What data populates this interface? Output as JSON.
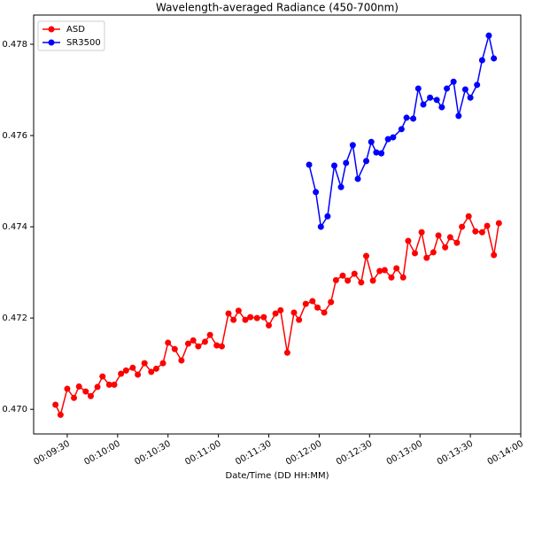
{
  "chart_data": {
    "type": "line",
    "title": "Wavelength-averaged Radiance (450-700nm)",
    "xlabel": "Date/Time (DD HH:MM)",
    "xlim": [
      "00:09:10",
      "00:14:00"
    ],
    "xticks": [
      "00:09:30",
      "00:10:00",
      "00:10:30",
      "00:11:00",
      "00:11:30",
      "00:12:00",
      "00:12:30",
      "00:13:00",
      "00:13:30",
      "00:14:00"
    ],
    "ylim": [
      0.46946,
      0.47864
    ],
    "yticks": [
      {
        "value": 0.47,
        "label": "0.470"
      },
      {
        "value": 0.472,
        "label": "0.472"
      },
      {
        "value": 0.474,
        "label": "0.474"
      },
      {
        "value": 0.476,
        "label": "0.476"
      },
      {
        "value": 0.478,
        "label": "0.478"
      }
    ],
    "legend": "upper left",
    "series": [
      {
        "name": "ASD",
        "color": "#ff0000",
        "x": [
          "00:09:23",
          "00:09:26",
          "00:09:30",
          "00:09:34",
          "00:09:37",
          "00:09:41",
          "00:09:44",
          "00:09:48",
          "00:09:51",
          "00:09:55",
          "00:09:58",
          "00:10:02",
          "00:10:05",
          "00:10:09",
          "00:10:12",
          "00:10:16",
          "00:10:20",
          "00:10:23",
          "00:10:27",
          "00:10:30",
          "00:10:34",
          "00:10:38",
          "00:10:42",
          "00:10:45",
          "00:10:48",
          "00:10:52",
          "00:10:55",
          "00:10:59",
          "00:11:02",
          "00:11:06",
          "00:11:09",
          "00:11:12",
          "00:11:16",
          "00:11:19",
          "00:11:23",
          "00:11:27",
          "00:11:30",
          "00:11:34",
          "00:11:37",
          "00:11:41",
          "00:11:45",
          "00:11:48",
          "00:11:52",
          "00:11:56",
          "00:11:59",
          "00:12:03",
          "00:12:07",
          "00:12:10",
          "00:12:14",
          "00:12:17",
          "00:12:21",
          "00:12:25",
          "00:12:28",
          "00:12:32",
          "00:12:36",
          "00:12:39",
          "00:12:43",
          "00:12:46",
          "00:12:50",
          "00:12:53",
          "00:12:57",
          "00:13:01",
          "00:13:04",
          "00:13:08",
          "00:13:11",
          "00:13:15",
          "00:13:18",
          "00:13:22",
          "00:13:25",
          "00:13:29",
          "00:13:33",
          "00:13:37",
          "00:13:40",
          "00:13:44",
          "00:13:47"
        ],
        "values": [
          0.4701,
          0.46988,
          0.47045,
          0.47025,
          0.4705,
          0.47039,
          0.47029,
          0.47049,
          0.47072,
          0.47054,
          0.47054,
          0.47078,
          0.47085,
          0.47091,
          0.47076,
          0.47101,
          0.47082,
          0.47089,
          0.47101,
          0.47146,
          0.47132,
          0.47107,
          0.47144,
          0.47151,
          0.47138,
          0.47148,
          0.47163,
          0.4714,
          0.47138,
          0.4721,
          0.47196,
          0.47216,
          0.47196,
          0.47202,
          0.472,
          0.47202,
          0.47184,
          0.4721,
          0.47217,
          0.47124,
          0.47212,
          0.47196,
          0.47231,
          0.47237,
          0.47223,
          0.47212,
          0.47235,
          0.47283,
          0.47293,
          0.47282,
          0.47297,
          0.47278,
          0.47336,
          0.47282,
          0.47303,
          0.47305,
          0.47289,
          0.47309,
          0.47289,
          0.47369,
          0.47342,
          0.47388,
          0.47332,
          0.47344,
          0.47381,
          0.47355,
          0.47377,
          0.47365,
          0.474,
          0.47423,
          0.4739,
          0.47388,
          0.47402,
          0.47338,
          0.47408
        ]
      },
      {
        "name": "SR3500",
        "color": "#0000ff",
        "x": [
          "00:11:54",
          "00:11:58",
          "00:12:01",
          "00:12:05",
          "00:12:09",
          "00:12:13",
          "00:12:16",
          "00:12:20",
          "00:12:23",
          "00:12:28",
          "00:12:31",
          "00:12:34",
          "00:12:37",
          "00:12:41",
          "00:12:44",
          "00:12:49",
          "00:12:52",
          "00:12:56",
          "00:12:59",
          "00:13:02",
          "00:13:06",
          "00:13:10",
          "00:13:13",
          "00:13:16",
          "00:13:20",
          "00:13:23",
          "00:13:27",
          "00:13:30",
          "00:13:34",
          "00:13:37",
          "00:13:41",
          "00:13:44"
        ],
        "values": [
          0.47536,
          0.47476,
          0.474,
          0.47423,
          0.47534,
          0.47487,
          0.4754,
          0.47579,
          0.47505,
          0.47544,
          0.47586,
          0.47563,
          0.47561,
          0.47592,
          0.47596,
          0.47614,
          0.47639,
          0.47637,
          0.47703,
          0.47668,
          0.47683,
          0.47678,
          0.47662,
          0.47703,
          0.47718,
          0.47643,
          0.47701,
          0.47683,
          0.47711,
          0.47765,
          0.47819,
          0.47769
        ]
      }
    ]
  }
}
